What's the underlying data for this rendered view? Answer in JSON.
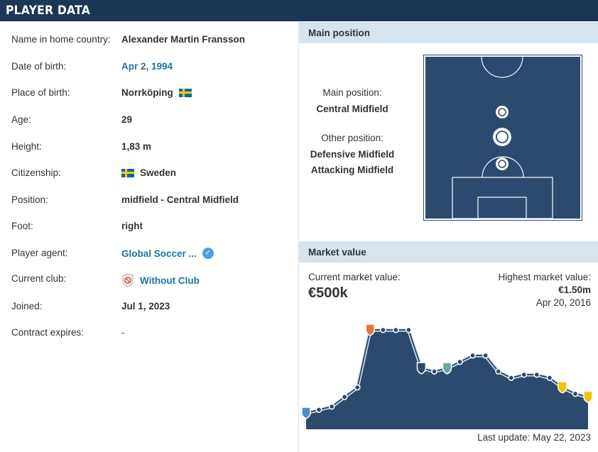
{
  "header": {
    "title": "PLAYER DATA"
  },
  "player_info": [
    {
      "label": "Name in home country:",
      "value": "Alexander Martin Fransson",
      "link": false
    },
    {
      "label": "Date of birth:",
      "value": "Apr 2, 1994",
      "link": true
    },
    {
      "label": "Place of birth:",
      "value": "Norrköping",
      "link": false,
      "flag": "sweden-flag-icon"
    },
    {
      "label": "Age:",
      "value": "29",
      "link": false
    },
    {
      "label": "Height:",
      "value": "1,83 m",
      "link": false
    },
    {
      "label": "Citizenship:",
      "value": "Sweden",
      "link": false,
      "flag": "sweden-flag-icon"
    },
    {
      "label": "Position:",
      "value": "midfield - Central Midfield",
      "link": false
    },
    {
      "label": "Foot:",
      "value": "right",
      "link": false
    },
    {
      "label": "Player agent:",
      "value": "Global Soccer ...",
      "link": true,
      "icon": "verified-check-icon"
    },
    {
      "label": "Current club:",
      "value": "Without Club",
      "link": true,
      "icon": "no-club-shield-icon"
    },
    {
      "label": "Joined:",
      "value": "Jul 1, 2023",
      "link": false
    },
    {
      "label": "Contract expires:",
      "value": "-",
      "link": false
    }
  ],
  "main_position": {
    "section_title": "Main position",
    "main_label": "Main position:",
    "main_value": "Central Midfield",
    "other_label": "Other position:",
    "other_values": [
      "Defensive Midfield",
      "Attacking Midfield"
    ]
  },
  "market_value": {
    "section_title": "Market value",
    "current_label": "Current market value:",
    "current_value": "€500k",
    "highest_label": "Highest market value:",
    "highest_value": "€1.50m",
    "highest_date": "Apr 20, 2016",
    "last_update": "Last update: May 22, 2023"
  },
  "colors": {
    "header_bg": "#1d3557",
    "link": "#1d75a3",
    "section_bg": "#d6e4ef",
    "chart_fill": "#2d4a6e",
    "pitch": "#2d4a6e"
  },
  "chart_data": {
    "type": "area",
    "title": "",
    "xlabel": "",
    "ylabel": "",
    "y_unit": "€ thousands",
    "ylim": [
      0,
      1600
    ],
    "values": [
      200,
      250,
      300,
      450,
      600,
      1500,
      1500,
      1500,
      1500,
      900,
      850,
      900,
      1000,
      1100,
      1100,
      850,
      750,
      800,
      800,
      750,
      600,
      500,
      450
    ],
    "club_markers": [
      0,
      5,
      9,
      11,
      20,
      22
    ]
  }
}
